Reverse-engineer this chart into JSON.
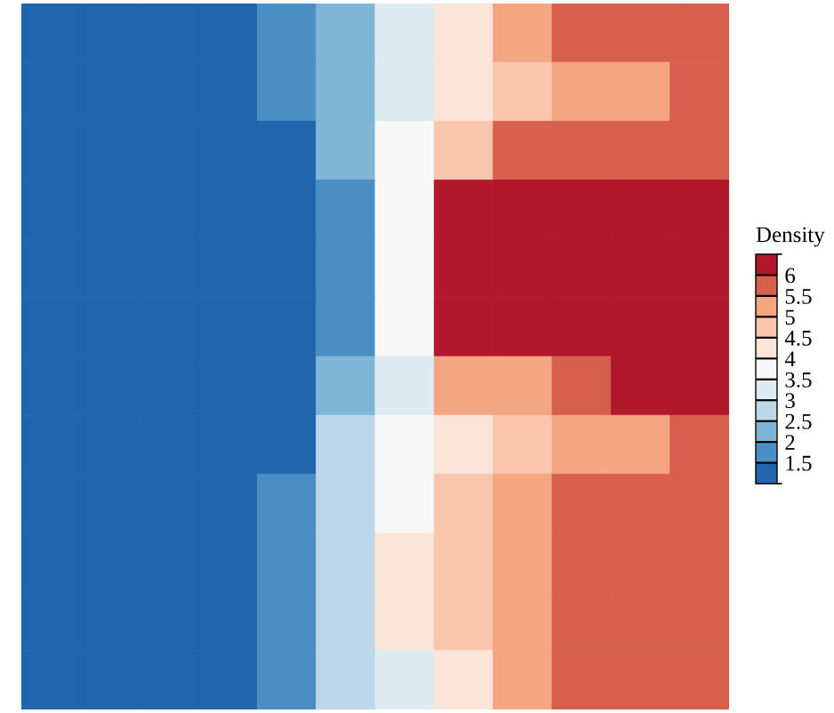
{
  "chart_data": {
    "type": "heatmap",
    "clabel": "Density",
    "categories": [
      null,
      null,
      null,
      null,
      null,
      null,
      null,
      null,
      null,
      null,
      null,
      null
    ],
    "y_categories": [
      null,
      null,
      null,
      null,
      null,
      null,
      null,
      null,
      null,
      null,
      null,
      null
    ],
    "cells": [
      [
        1.0,
        1.0,
        1.0,
        1.2,
        1.65,
        2.45,
        3.4,
        4.4,
        5.1,
        5.55,
        5.8,
        5.7
      ],
      [
        1.0,
        1.0,
        1.0,
        1.2,
        1.62,
        2.42,
        3.26,
        4.1,
        4.76,
        5.1,
        5.3,
        5.5
      ],
      [
        1.0,
        1.0,
        1.0,
        1.2,
        1.25,
        2.25,
        3.6,
        4.85,
        5.5,
        5.7,
        5.8,
        5.85
      ],
      [
        1.0,
        1.0,
        1.0,
        1.0,
        1.0,
        1.9,
        3.5,
        6.0,
        6.1,
        6.05,
        6.05,
        6.1
      ],
      [
        1.0,
        1.0,
        1.0,
        1.0,
        1.0,
        1.5,
        3.5,
        6.3,
        6.5,
        6.5,
        6.5,
        6.5
      ],
      [
        1.0,
        1.0,
        1.0,
        1.0,
        1.0,
        1.95,
        3.8,
        6.0,
        6.1,
        6.2,
        6.3,
        6.3
      ],
      [
        1.0,
        1.0,
        1.0,
        1.2,
        1.3,
        2.3,
        3.4,
        5.0,
        5.4,
        5.7,
        6.0,
        6.05
      ],
      [
        1.0,
        1.0,
        1.0,
        1.2,
        1.48,
        2.65,
        3.6,
        4.05,
        4.8,
        5.2,
        5.4,
        5.5
      ],
      [
        1.0,
        1.0,
        1.0,
        1.2,
        1.5,
        2.7,
        3.8,
        4.55,
        5.2,
        5.65,
        5.8,
        5.85
      ],
      [
        1.0,
        1.0,
        1.0,
        1.2,
        1.55,
        2.85,
        4.1,
        4.85,
        5.2,
        5.55,
        5.8,
        5.85
      ],
      [
        1.0,
        1.0,
        1.0,
        1.2,
        1.6,
        2.9,
        4.05,
        4.7,
        5.2,
        5.55,
        5.8,
        5.85
      ],
      [
        1.0,
        1.0,
        1.0,
        1.2,
        1.65,
        2.5,
        3.4,
        4.45,
        5.2,
        5.6,
        5.8,
        5.85
      ]
    ],
    "colors": [
      "#2166ac",
      "#4a8ec3",
      "#7fb5d6",
      "#bcd8e8",
      "#deebf3",
      "#f7f7f7",
      "#fbe5d9",
      "#f9c6ad",
      "#f4a582",
      "#d6604d",
      "#b2182b"
    ],
    "clim": [
      1,
      6.5
    ],
    "cticks": [
      1.5,
      2,
      2.5,
      3,
      3.5,
      4,
      4.5,
      5,
      5.5,
      6
    ],
    "tick_labels": false
  }
}
